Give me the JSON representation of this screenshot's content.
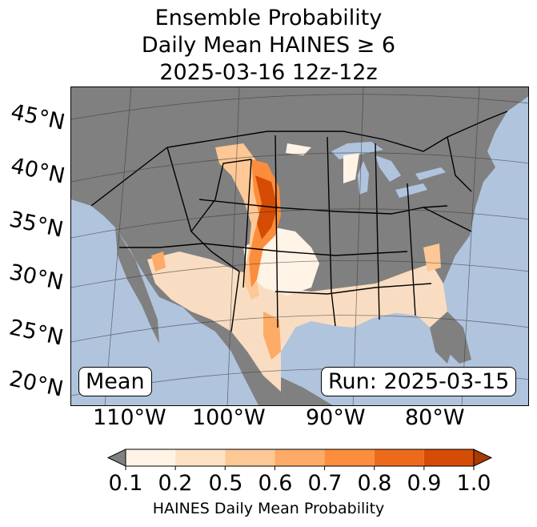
{
  "title": {
    "line1": "Ensemble Probability",
    "line2": "Daily Mean HAINES ≥ 6",
    "line3": "2025-03-16 12z-12z"
  },
  "map": {
    "lat_labels": [
      "45°N",
      "40°N",
      "35°N",
      "30°N",
      "25°N",
      "20°N"
    ],
    "lon_labels": [
      "110°W",
      "100°W",
      "90°W",
      "80°W"
    ],
    "stat_label": "Mean",
    "run_label": "Run: 2025-03-15",
    "colors": {
      "ocean": "#b0c4de",
      "land": "#808080",
      "border": "#000000"
    }
  },
  "colorbar": {
    "ticks": [
      "0.1",
      "0.2",
      "0.5",
      "0.6",
      "0.7",
      "0.8",
      "0.9",
      "1.0"
    ],
    "colors": [
      "#fff3e6",
      "#fee1c5",
      "#fdc895",
      "#fdab67",
      "#fb8d3d",
      "#ec6a1c",
      "#d44c06"
    ],
    "under_color": "#808080",
    "over_color": "#a83a04",
    "label": "HAINES Daily Mean Probability"
  }
}
